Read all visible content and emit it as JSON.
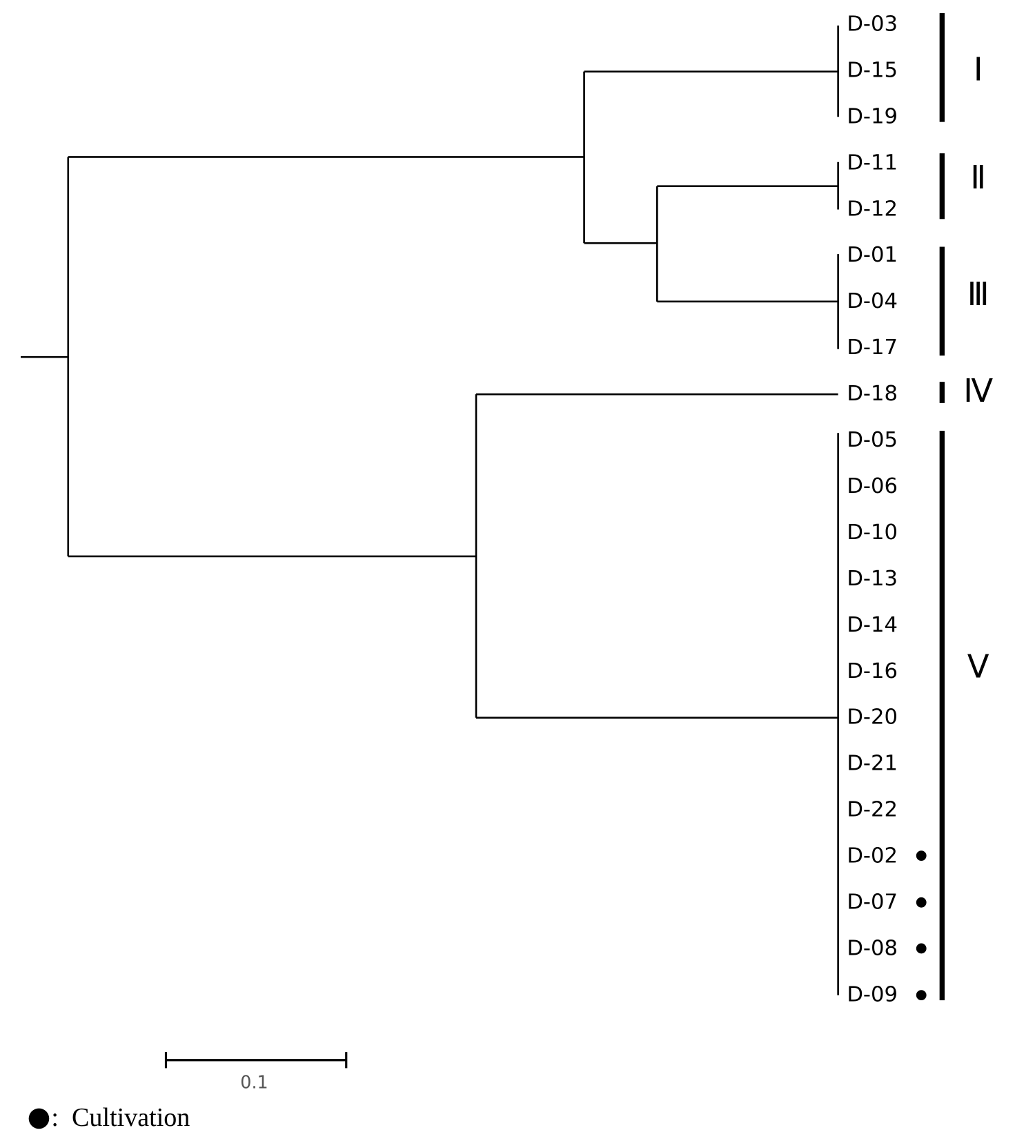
{
  "leaves": [
    "D-03",
    "D-15",
    "D-19",
    "D-11",
    "D-12",
    "D-01",
    "D-04",
    "D-17",
    "D-18",
    "D-05",
    "D-06",
    "D-10",
    "D-13",
    "D-14",
    "D-16",
    "D-20",
    "D-21",
    "D-22",
    "D-02",
    "D-07",
    "D-08",
    "D-09"
  ],
  "groups": [
    "Ⅰ",
    "Ⅱ",
    "Ⅲ",
    "Ⅳ",
    "Ⅴ"
  ],
  "scale_bar": {
    "label": "0.1"
  },
  "legend": {
    "separator": ":",
    "label": "Cultivation"
  }
}
